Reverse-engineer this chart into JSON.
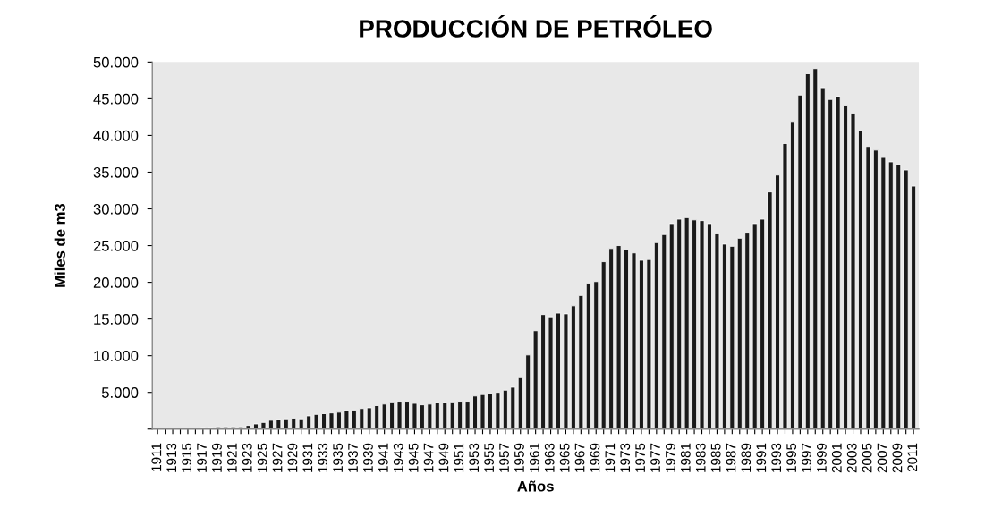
{
  "chart_data": {
    "type": "bar",
    "title": "PRODUCCIÓN DE PETRÓLEO",
    "xlabel": "Años",
    "ylabel": "Miles de m3",
    "categories": [
      "1911",
      null,
      "1913",
      null,
      "1915",
      null,
      "1917",
      null,
      "1919",
      null,
      "1921",
      null,
      "1923",
      null,
      "1925",
      null,
      "1927",
      null,
      "1929",
      null,
      "1931",
      null,
      "1933",
      null,
      "1935",
      null,
      "1937",
      null,
      "1939",
      null,
      "1941",
      null,
      "1943",
      null,
      "1945",
      null,
      "1947",
      null,
      "1949",
      null,
      "1951",
      null,
      "1953",
      null,
      "1955",
      null,
      "1957",
      null,
      "1959",
      null,
      "1961",
      null,
      "1963",
      null,
      "1965",
      null,
      "1967",
      null,
      "1969",
      null,
      "1971",
      null,
      "1973",
      null,
      "1975",
      null,
      "1977",
      null,
      "1979",
      null,
      "1981",
      null,
      "1983",
      null,
      "1985",
      null,
      "1987",
      null,
      "1989",
      null,
      "1991",
      null,
      "1993",
      null,
      "1995",
      null,
      "1997",
      null,
      "1999",
      null,
      "2001",
      null,
      "2003",
      null,
      "2005",
      null,
      "2007",
      null,
      "2009",
      null,
      "2011"
    ],
    "values": [
      null,
      null,
      null,
      null,
      null,
      null,
      200,
      200,
      300,
      300,
      300,
      300,
      500,
      700,
      900,
      1200,
      1300,
      1400,
      1500,
      1400,
      1800,
      2000,
      2100,
      2200,
      2300,
      2500,
      2600,
      2800,
      2900,
      3200,
      3400,
      3700,
      3800,
      3800,
      3500,
      3300,
      3400,
      3600,
      3600,
      3700,
      3800,
      3800,
      4500,
      4700,
      4800,
      5000,
      5300,
      5700,
      7000,
      10100,
      13400,
      15600,
      15300,
      15800,
      15700,
      16800,
      18200,
      19900,
      20100,
      22800,
      24600,
      25000,
      24400,
      24000,
      23000,
      23100,
      25400,
      26500,
      28000,
      28600,
      28800,
      28500,
      28400,
      28000,
      26600,
      25200,
      24900,
      26000,
      26700,
      28000,
      28600,
      32300,
      34600,
      38900,
      41900,
      45500,
      48400,
      49100,
      46500,
      44900,
      45300,
      44100,
      43000,
      40600,
      38500,
      38000,
      37000,
      36400,
      36000,
      35300,
      33100
    ],
    "color": "#1a1a1a",
    "ylim": [
      0,
      50000
    ],
    "yticks": [
      {
        "value": 0,
        "label": null
      },
      {
        "value": 5000,
        "label": "5.000"
      },
      {
        "value": 10000,
        "label": "10.000"
      },
      {
        "value": 15000,
        "label": "15.000"
      },
      {
        "value": 20000,
        "label": "20.000"
      },
      {
        "value": 25000,
        "label": "25.000"
      },
      {
        "value": 30000,
        "label": "30.000"
      },
      {
        "value": 35000,
        "label": "35.000"
      },
      {
        "value": 40000,
        "label": "40.000"
      },
      {
        "value": 45000,
        "label": "45.000"
      },
      {
        "value": 50000,
        "label": "50.000"
      }
    ],
    "grid": false,
    "legend": false
  }
}
